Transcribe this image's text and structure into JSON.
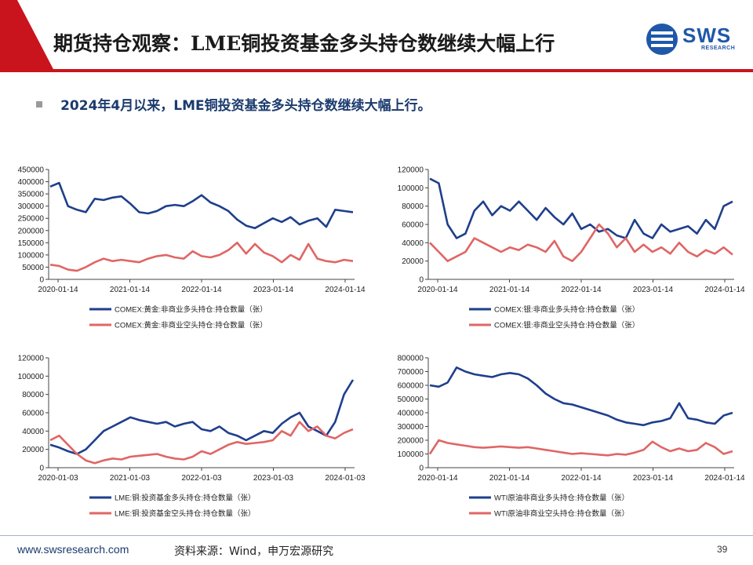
{
  "header": {
    "title": "期货持仓观察：LME铜投资基金多头持仓数继续大幅上行",
    "logo_text": "SWS",
    "logo_sub": "RESEARCH"
  },
  "bullet": "2024年4月以来，LME铜投资基金多头持仓数继续大幅上行。",
  "footer": {
    "url": "www.swsresearch.com",
    "source": "资料来源：Wind，申万宏源研究",
    "page": "39"
  },
  "colors": {
    "long": "#1f3e8c",
    "short": "#e06666",
    "brand_red": "#c9141e",
    "brand_blue": "#1f58a8"
  },
  "chart_data": [
    {
      "type": "line",
      "x_ticks": [
        "2020-01-14",
        "2021-01-14",
        "2022-01-14",
        "2023-01-14",
        "2024-01-14"
      ],
      "ylim": [
        0,
        450000
      ],
      "y_ticks": [
        "0",
        "50000",
        "100000",
        "150000",
        "200000",
        "250000",
        "300000",
        "350000",
        "400000",
        "450000"
      ],
      "series": [
        {
          "name": "COMEX:黄金:非商业多头持仓:持仓数量（张）",
          "color": "#1f3e8c",
          "values": [
            380000,
            395000,
            300000,
            285000,
            275000,
            330000,
            325000,
            335000,
            340000,
            310000,
            275000,
            270000,
            280000,
            300000,
            305000,
            300000,
            320000,
            345000,
            315000,
            300000,
            280000,
            245000,
            220000,
            210000,
            230000,
            250000,
            235000,
            255000,
            225000,
            240000,
            250000,
            215000,
            285000,
            280000,
            275000
          ]
        },
        {
          "name": "COMEX:黄金:非商业空头持仓:持仓数量（张）",
          "color": "#e06666",
          "values": [
            60000,
            55000,
            40000,
            35000,
            50000,
            70000,
            85000,
            75000,
            80000,
            75000,
            70000,
            85000,
            95000,
            100000,
            90000,
            85000,
            115000,
            95000,
            90000,
            100000,
            120000,
            150000,
            105000,
            145000,
            110000,
            95000,
            70000,
            100000,
            80000,
            145000,
            85000,
            75000,
            70000,
            80000,
            75000
          ]
        }
      ]
    },
    {
      "type": "line",
      "x_ticks": [
        "2020-01-14",
        "2021-01-14",
        "2022-01-14",
        "2023-01-14",
        "2024-01-14"
      ],
      "ylim": [
        0,
        120000
      ],
      "y_ticks": [
        "0",
        "20000",
        "40000",
        "60000",
        "80000",
        "100000",
        "120000"
      ],
      "series": [
        {
          "name": "COMEX:银:非商业多头持仓:持仓数量（张）",
          "color": "#1f3e8c",
          "values": [
            110000,
            105000,
            60000,
            45000,
            50000,
            75000,
            85000,
            70000,
            80000,
            75000,
            85000,
            75000,
            65000,
            78000,
            68000,
            60000,
            72000,
            55000,
            60000,
            52000,
            55000,
            48000,
            45000,
            65000,
            50000,
            45000,
            60000,
            52000,
            55000,
            58000,
            50000,
            65000,
            55000,
            80000,
            85000
          ]
        },
        {
          "name": "COMEX:银:非商业空头持仓:持仓数量（张）",
          "color": "#e06666",
          "values": [
            40000,
            30000,
            20000,
            25000,
            30000,
            45000,
            40000,
            35000,
            30000,
            35000,
            32000,
            38000,
            35000,
            30000,
            42000,
            25000,
            20000,
            30000,
            45000,
            60000,
            50000,
            35000,
            45000,
            30000,
            38000,
            30000,
            35000,
            28000,
            40000,
            30000,
            25000,
            32000,
            28000,
            35000,
            27000
          ]
        }
      ]
    },
    {
      "type": "line",
      "x_ticks": [
        "2020-01-03",
        "2021-01-03",
        "2022-01-03",
        "2023-01-03",
        "2024-01-03"
      ],
      "ylim": [
        0,
        120000
      ],
      "y_ticks": [
        "0",
        "20000",
        "40000",
        "60000",
        "80000",
        "100000",
        "120000"
      ],
      "series": [
        {
          "name": "LME:铜:投资基金多头持仓:持仓数量（张）",
          "color": "#1f3e8c",
          "values": [
            25000,
            22000,
            18000,
            15000,
            20000,
            30000,
            40000,
            45000,
            50000,
            55000,
            52000,
            50000,
            48000,
            50000,
            45000,
            48000,
            50000,
            42000,
            40000,
            45000,
            38000,
            35000,
            30000,
            35000,
            40000,
            38000,
            48000,
            55000,
            60000,
            45000,
            40000,
            35000,
            50000,
            80000,
            96000
          ]
        },
        {
          "name": "LME:铜:投资基金空头持仓:持仓数量（张）",
          "color": "#e06666",
          "values": [
            30000,
            35000,
            25000,
            15000,
            8000,
            5000,
            8000,
            10000,
            9000,
            12000,
            13000,
            14000,
            15000,
            12000,
            10000,
            9000,
            12000,
            18000,
            15000,
            20000,
            25000,
            28000,
            26000,
            27000,
            28000,
            30000,
            40000,
            35000,
            50000,
            40000,
            45000,
            35000,
            32000,
            38000,
            42000
          ]
        }
      ]
    },
    {
      "type": "line",
      "x_ticks": [
        "2020-01-14",
        "2021-01-14",
        "2022-01-14",
        "2023-01-14",
        "2024-01-14"
      ],
      "ylim": [
        0,
        800000
      ],
      "y_ticks": [
        "0",
        "100000",
        "200000",
        "300000",
        "400000",
        "500000",
        "600000",
        "700000",
        "800000"
      ],
      "series": [
        {
          "name": "WTI原油非商业多头持仓:持仓数量（张）",
          "color": "#1f3e8c",
          "values": [
            600000,
            590000,
            620000,
            730000,
            700000,
            680000,
            670000,
            660000,
            680000,
            690000,
            680000,
            650000,
            600000,
            540000,
            500000,
            470000,
            460000,
            440000,
            420000,
            400000,
            380000,
            350000,
            330000,
            320000,
            310000,
            330000,
            340000,
            360000,
            470000,
            360000,
            350000,
            330000,
            320000,
            380000,
            400000
          ]
        },
        {
          "name": "WTI原油非商业空头持仓:持仓数量（张）",
          "color": "#e06666",
          "values": [
            100000,
            200000,
            180000,
            170000,
            160000,
            150000,
            145000,
            150000,
            155000,
            150000,
            145000,
            150000,
            140000,
            130000,
            120000,
            110000,
            100000,
            105000,
            100000,
            95000,
            90000,
            100000,
            95000,
            110000,
            130000,
            190000,
            150000,
            120000,
            140000,
            120000,
            130000,
            180000,
            150000,
            100000,
            120000
          ]
        }
      ]
    }
  ]
}
